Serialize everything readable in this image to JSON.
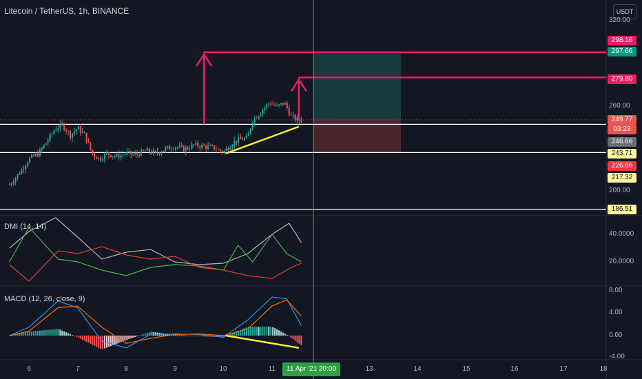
{
  "header": {
    "title": "Litecoin / TetherUS, 1h, BINANCE",
    "currency_button": "USDT"
  },
  "panes": {
    "dmi_label": "DMI (14, 14)",
    "macd_label": "MACD (12, 26, close, 9)"
  },
  "colors": {
    "background": "#131722",
    "up": "#26a69a",
    "down": "#ef5350",
    "pink": "#e91e63",
    "yellow": "#ffeb3b",
    "white_line": "#ffffff",
    "cursor_line": "#4caf50",
    "dmi_adx": "#b2b5be",
    "dmi_plus": "#4caf50",
    "dmi_minus": "#e53935",
    "macd": "#2196f3",
    "signal": "#ff6d00"
  },
  "price_axis": {
    "ticks": [
      "320.00",
      "260.00",
      "200.00"
    ]
  },
  "dmi_axis": {
    "ticks": [
      "40.0000",
      "20.0000"
    ]
  },
  "macd_axis": {
    "ticks": [
      "8.00",
      "4.00",
      "0.00",
      "-4.00"
    ]
  },
  "x_axis": {
    "ticks": [
      "6",
      "7",
      "8",
      "9",
      "10",
      "11",
      "12",
      "13",
      "14",
      "15",
      "16",
      "17",
      "18"
    ],
    "cursor_label": "11 Apr '21  20:00"
  },
  "price_labels": [
    {
      "value": "298.16",
      "bg": "#e91e63",
      "fg": "#ffffff"
    },
    {
      "value": "297.66",
      "bg": "#089981",
      "fg": "#ffffff"
    },
    {
      "value": "279.80",
      "bg": "#e91e63",
      "fg": "#ffffff"
    },
    {
      "value": "249.77",
      "bg": "#ef5350",
      "fg": "#ffffff"
    },
    {
      "value": "03:23",
      "bg": "#ef5350",
      "fg": "#ffffff"
    },
    {
      "value": "246.66",
      "bg": "#6a6d78",
      "fg": "#ffffff"
    },
    {
      "value": "243.71",
      "bg": "#fff59d",
      "fg": "#131722"
    },
    {
      "value": "226.66",
      "bg": "#f23645",
      "fg": "#ffffff"
    },
    {
      "value": "217.32",
      "bg": "#fff59d",
      "fg": "#131722"
    },
    {
      "value": "186.51",
      "bg": "#fff59d",
      "fg": "#131722"
    }
  ],
  "chart_data": {
    "type": "candlestick",
    "symbol": "Litecoin / TetherUS",
    "interval": "1h",
    "exchange": "BINANCE",
    "price_range": [
      183,
      330
    ],
    "x_days": [
      6,
      7,
      8,
      9,
      10,
      11,
      12,
      13,
      14,
      15,
      16,
      17,
      18
    ],
    "close_path": [
      [
        5.6,
        204
      ],
      [
        5.8,
        212
      ],
      [
        6.0,
        222
      ],
      [
        6.2,
        226
      ],
      [
        6.4,
        236
      ],
      [
        6.55,
        244
      ],
      [
        6.7,
        246
      ],
      [
        6.85,
        239
      ],
      [
        7.0,
        244
      ],
      [
        7.15,
        239
      ],
      [
        7.3,
        226
      ],
      [
        7.45,
        222
      ],
      [
        7.6,
        226
      ],
      [
        7.8,
        224
      ],
      [
        8.0,
        226
      ],
      [
        8.2,
        225
      ],
      [
        8.4,
        228
      ],
      [
        8.6,
        226
      ],
      [
        8.8,
        229
      ],
      [
        9.0,
        231
      ],
      [
        9.2,
        229
      ],
      [
        9.4,
        232
      ],
      [
        9.6,
        231
      ],
      [
        9.8,
        230
      ],
      [
        10.0,
        227
      ],
      [
        10.2,
        234
      ],
      [
        10.35,
        236
      ],
      [
        10.5,
        237
      ],
      [
        10.6,
        250
      ],
      [
        10.7,
        253
      ],
      [
        10.8,
        257
      ],
      [
        10.95,
        262
      ],
      [
        11.1,
        259
      ],
      [
        11.25,
        262
      ],
      [
        11.4,
        252
      ],
      [
        11.5,
        250
      ],
      [
        11.6,
        249.77
      ]
    ],
    "horizontal_levels": [
      246.66,
      226.66,
      186.51
    ],
    "targets": [
      297.66,
      279.8
    ],
    "position": {
      "entry": 249.77,
      "target": 297.66,
      "stop": 226.66
    },
    "trendline": {
      "from": [
        10.05,
        226
      ],
      "to": [
        11.55,
        245
      ]
    },
    "dmi": {
      "adx": [
        [
          5.6,
          30
        ],
        [
          6.0,
          42
        ],
        [
          6.55,
          52
        ],
        [
          7.0,
          38
        ],
        [
          7.5,
          22
        ],
        [
          8.0,
          27
        ],
        [
          8.5,
          29
        ],
        [
          9.0,
          20
        ],
        [
          9.5,
          18
        ],
        [
          10.0,
          19
        ],
        [
          10.5,
          26
        ],
        [
          11.0,
          40
        ],
        [
          11.35,
          48
        ],
        [
          11.6,
          34
        ]
      ],
      "plus_di": [
        [
          5.6,
          20
        ],
        [
          6.0,
          45
        ],
        [
          6.6,
          22
        ],
        [
          7.0,
          20
        ],
        [
          7.5,
          14
        ],
        [
          8.0,
          10
        ],
        [
          8.5,
          16
        ],
        [
          9.0,
          18
        ],
        [
          9.5,
          17
        ],
        [
          10.0,
          14
        ],
        [
          10.3,
          32
        ],
        [
          10.6,
          20
        ],
        [
          11.0,
          40
        ],
        [
          11.3,
          26
        ],
        [
          11.6,
          20
        ]
      ],
      "minus_di": [
        [
          5.6,
          18
        ],
        [
          6.0,
          6
        ],
        [
          6.6,
          28
        ],
        [
          7.0,
          26
        ],
        [
          7.5,
          31
        ],
        [
          8.0,
          25
        ],
        [
          8.5,
          22
        ],
        [
          9.0,
          24
        ],
        [
          9.5,
          16
        ],
        [
          10.0,
          14
        ],
        [
          10.5,
          10
        ],
        [
          11.0,
          8
        ],
        [
          11.4,
          16
        ],
        [
          11.6,
          19
        ]
      ],
      "ylim": [
        0,
        50
      ]
    },
    "macd": {
      "macd_line": [
        [
          5.6,
          0
        ],
        [
          6.0,
          1.5
        ],
        [
          6.6,
          6.2
        ],
        [
          7.0,
          5.0
        ],
        [
          7.5,
          -1.0
        ],
        [
          8.0,
          -2.2
        ],
        [
          8.5,
          0.2
        ],
        [
          9.0,
          0.3
        ],
        [
          9.5,
          0.2
        ],
        [
          10.0,
          -0.3
        ],
        [
          10.5,
          2.8
        ],
        [
          11.0,
          6.9
        ],
        [
          11.3,
          6.6
        ],
        [
          11.6,
          1.8
        ]
      ],
      "signal_line": [
        [
          5.6,
          0
        ],
        [
          6.0,
          0.8
        ],
        [
          6.6,
          5.0
        ],
        [
          7.0,
          5.3
        ],
        [
          7.5,
          1.5
        ],
        [
          8.0,
          -1.4
        ],
        [
          8.5,
          -0.5
        ],
        [
          9.0,
          0.2
        ],
        [
          9.5,
          0.3
        ],
        [
          10.0,
          0.0
        ],
        [
          10.5,
          1.2
        ],
        [
          11.0,
          5.3
        ],
        [
          11.3,
          6.4
        ],
        [
          11.6,
          3.5
        ]
      ],
      "ylim": [
        -5,
        8
      ]
    }
  }
}
